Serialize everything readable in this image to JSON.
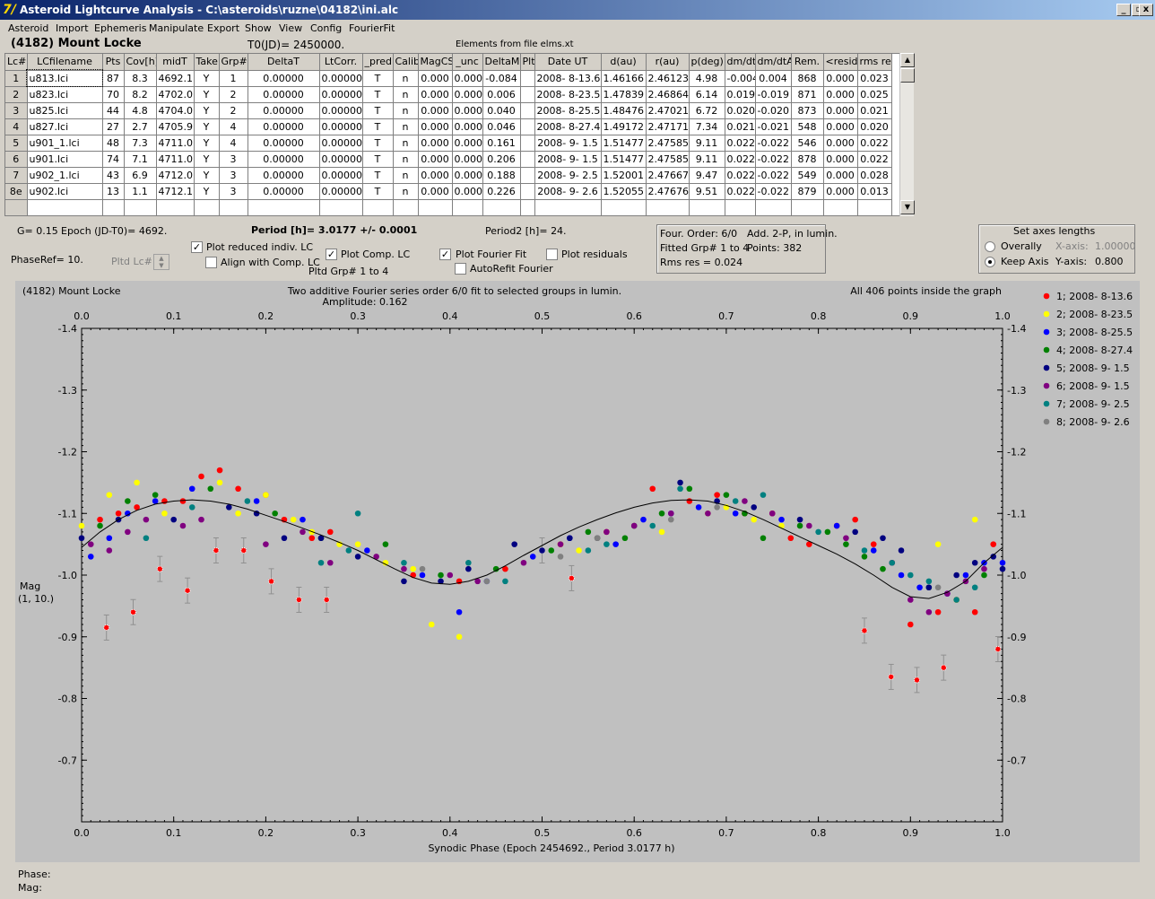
{
  "window": {
    "title": "Asteroid Lightcurve Analysis - C:\\asteroids\\ruzne\\04182\\ini.alc",
    "icon": "app-icon",
    "controls": [
      "_",
      "▫",
      "x"
    ]
  },
  "menu": [
    "Asteroid",
    "Import",
    "Ephemeris",
    "Manipulate",
    "Export",
    "Show",
    "View",
    "Config",
    "FourierFit"
  ],
  "header": {
    "asteroid": "(4182) Mount Locke",
    "t0": "T0(JD)= 2450000.",
    "elements": "Elements from file elms.xt"
  },
  "table": {
    "columns": [
      "Lc#",
      "LCfilename",
      "Pts",
      "Cov[h]",
      "midT",
      "Take",
      "Grp#",
      "DeltaT",
      "LtCorr.",
      "_pred.",
      "Calib.",
      "MagCS",
      "_unc",
      "DeltaM",
      "Plt",
      "Date UT",
      "d(au)",
      "r(au)",
      "p(deg)",
      "dm/dt",
      "dm/dtA",
      "Rem.",
      "<resid>",
      "rms res"
    ],
    "rows": [
      [
        "1",
        "u813.lci",
        "87",
        "8.3",
        "4692.1",
        "Y",
        "1",
        "0.00000",
        "0.00000",
        "T",
        "n",
        "0.000",
        "0.000",
        "-0.084",
        "",
        "2008- 8-13.6",
        "1.46166",
        "2.46123",
        "4.98",
        "-0.004",
        "0.004",
        "868",
        "0.000",
        "0.023"
      ],
      [
        "2",
        "u823.lci",
        "70",
        "8.2",
        "4702.0",
        "Y",
        "2",
        "0.00000",
        "0.00000",
        "T",
        "n",
        "0.000",
        "0.000",
        "0.006",
        "",
        "2008- 8-23.5",
        "1.47839",
        "2.46864",
        "6.14",
        "0.019",
        "-0.019",
        "871",
        "0.000",
        "0.025"
      ],
      [
        "3",
        "u825.lci",
        "44",
        "4.8",
        "4704.0",
        "Y",
        "2",
        "0.00000",
        "0.00000",
        "T",
        "n",
        "0.000",
        "0.000",
        "0.040",
        "",
        "2008- 8-25.5",
        "1.48476",
        "2.47021",
        "6.72",
        "0.020",
        "-0.020",
        "873",
        "0.000",
        "0.021"
      ],
      [
        "4",
        "u827.lci",
        "27",
        "2.7",
        "4705.9",
        "Y",
        "4",
        "0.00000",
        "0.00000",
        "T",
        "n",
        "0.000",
        "0.000",
        "0.046",
        "",
        "2008- 8-27.4",
        "1.49172",
        "2.47171",
        "7.34",
        "0.021",
        "-0.021",
        "548",
        "0.000",
        "0.020"
      ],
      [
        "5",
        "u901_1.lci",
        "48",
        "7.3",
        "4711.0",
        "Y",
        "4",
        "0.00000",
        "0.00000",
        "T",
        "n",
        "0.000",
        "0.000",
        "0.161",
        "",
        "2008- 9- 1.5",
        "1.51477",
        "2.47585",
        "9.11",
        "0.022",
        "-0.022",
        "546",
        "0.000",
        "0.022"
      ],
      [
        "6",
        "u901.lci",
        "74",
        "7.1",
        "4711.0",
        "Y",
        "3",
        "0.00000",
        "0.00000",
        "T",
        "n",
        "0.000",
        "0.000",
        "0.206",
        "",
        "2008- 9- 1.5",
        "1.51477",
        "2.47585",
        "9.11",
        "0.022",
        "-0.022",
        "878",
        "0.000",
        "0.022"
      ],
      [
        "7",
        "u902_1.lci",
        "43",
        "6.9",
        "4712.0",
        "Y",
        "3",
        "0.00000",
        "0.00000",
        "T",
        "n",
        "0.000",
        "0.000",
        "0.188",
        "",
        "2008- 9- 2.5",
        "1.52001",
        "2.47667",
        "9.47",
        "0.022",
        "-0.022",
        "549",
        "0.000",
        "0.028"
      ],
      [
        "8e",
        "u902.lci",
        "13",
        "1.1",
        "4712.1",
        "Y",
        "3",
        "0.00000",
        "0.00000",
        "T",
        "n",
        "0.000",
        "0.000",
        "0.226",
        "",
        "2008- 9- 2.6",
        "1.52055",
        "2.47676",
        "9.51",
        "0.022",
        "-0.022",
        "879",
        "0.000",
        "0.013"
      ]
    ]
  },
  "controls": {
    "g": "G= 0.15",
    "epoch": "Epoch (JD-T0)= 4692.",
    "phaseref": "PhaseRef= 10.",
    "pltd_lc": "Pltd Lc#:",
    "period": "Period [h]= 3.0177 +/- 0.0001",
    "period2": "Period2 [h]= 24.",
    "plot_reduced": "Plot reduced indiv. LC",
    "align_comp": "Align with Comp. LC",
    "plot_comp": "Plot Comp. LC",
    "pltd_grp": "Pltd Grp#  1   to   4",
    "plot_fourier": "Plot Fourier Fit",
    "autorefit": "AutoRefit Fourier",
    "plot_residuals": "Plot residuals",
    "four_order": "Four. Order:  6/0",
    "add_2p": "Add. 2-P, in lumin.",
    "fitted_grp": "Fitted Grp# 1 to 4",
    "points": "Points: 382",
    "rms_res": "Rms res      = 0.024",
    "axes_title": "Set axes lengths",
    "overally": "Overally",
    "keep_axis": "Keep Axis",
    "x_axis_label": "X-axis:",
    "x_axis_value": "1.00000",
    "y_axis_label": "Y-axis:",
    "y_axis_value": "0.800"
  },
  "status": {
    "phase": "Phase:",
    "mag": "Mag:"
  },
  "colors": {
    "red": "#ff0000",
    "yellow": "#ffff00",
    "blue": "#0000ff",
    "green": "#008000",
    "navy": "#000080",
    "purple": "#800080",
    "teal": "#008080",
    "gray": "#808080"
  },
  "chart_data": {
    "type": "scatter",
    "title_left": "(4182) Mount Locke",
    "title_center": "Two additive Fourier series order 6/0 fit to selected groups in lumin.",
    "amplitude": "Amplitude: 0.162",
    "title_right": "All 406 points inside the graph",
    "xlabel": "Synodic Phase (Epoch 2454692., Period 3.0177 h)",
    "ylabel": "Mag",
    "ylabel2": "(1, 10.)",
    "xlim": [
      0.0,
      1.0
    ],
    "ylim": [
      -1.4,
      -0.6
    ],
    "y_inverted": true,
    "xticks": [
      "0.0",
      "0.1",
      "0.2",
      "0.3",
      "0.4",
      "0.5",
      "0.6",
      "0.7",
      "0.8",
      "0.9",
      "1.0"
    ],
    "yticks": [
      "-1.4",
      "-1.3",
      "-1.2",
      "-1.1",
      "-1.0",
      "-0.9",
      "-0.8",
      "-0.7"
    ],
    "legend": [
      {
        "label": "1; 2008- 8-13.6",
        "color": "#ff0000"
      },
      {
        "label": "2; 2008- 8-23.5",
        "color": "#ffff00"
      },
      {
        "label": "3; 2008- 8-25.5",
        "color": "#0000ff"
      },
      {
        "label": "4; 2008- 8-27.4",
        "color": "#008000"
      },
      {
        "label": "5; 2008- 9- 1.5",
        "color": "#000080"
      },
      {
        "label": "6; 2008- 9- 1.5",
        "color": "#800080"
      },
      {
        "label": "7; 2008- 9- 2.5",
        "color": "#008080"
      },
      {
        "label": "8; 2008- 9- 2.6",
        "color": "#808080"
      }
    ],
    "fit_curve": {
      "x": [
        0.0,
        0.02,
        0.04,
        0.06,
        0.08,
        0.1,
        0.12,
        0.14,
        0.16,
        0.18,
        0.2,
        0.22,
        0.24,
        0.26,
        0.28,
        0.3,
        0.32,
        0.34,
        0.36,
        0.38,
        0.4,
        0.42,
        0.44,
        0.46,
        0.48,
        0.5,
        0.52,
        0.54,
        0.56,
        0.58,
        0.6,
        0.62,
        0.64,
        0.66,
        0.68,
        0.7,
        0.72,
        0.74,
        0.76,
        0.78,
        0.8,
        0.82,
        0.84,
        0.86,
        0.88,
        0.9,
        0.92,
        0.94,
        0.96,
        0.98,
        1.0
      ],
      "y": [
        -1.045,
        -1.07,
        -1.09,
        -1.105,
        -1.115,
        -1.12,
        -1.122,
        -1.12,
        -1.115,
        -1.107,
        -1.097,
        -1.087,
        -1.076,
        -1.065,
        -1.053,
        -1.04,
        -1.025,
        -1.01,
        -0.996,
        -0.987,
        -0.985,
        -0.99,
        -1.0,
        -1.015,
        -1.032,
        -1.048,
        -1.064,
        -1.078,
        -1.09,
        -1.101,
        -1.11,
        -1.117,
        -1.121,
        -1.122,
        -1.12,
        -1.113,
        -1.103,
        -1.09,
        -1.076,
        -1.062,
        -1.048,
        -1.034,
        -1.018,
        -1.0,
        -0.98,
        -0.965,
        -0.962,
        -0.972,
        -0.99,
        -1.02,
        -1.045
      ]
    },
    "series": [
      {
        "name": "1; 2008- 8-13.6",
        "color": "#ff0000",
        "x": [
          0.02,
          0.04,
          0.06,
          0.09,
          0.11,
          0.13,
          0.15,
          0.17,
          0.2,
          0.22,
          0.25,
          0.27,
          0.36,
          0.41,
          0.46,
          0.52,
          0.57,
          0.62,
          0.66,
          0.69,
          0.72,
          0.75,
          0.77,
          0.79,
          0.82,
          0.84,
          0.86,
          0.88,
          0.9,
          0.93,
          0.95,
          0.97,
          0.99
        ],
        "y": [
          -1.09,
          -1.1,
          -1.11,
          -1.12,
          -1.12,
          -1.16,
          -1.17,
          -1.14,
          -1.13,
          -1.09,
          -1.06,
          -1.07,
          -1.0,
          -0.99,
          -1.01,
          -1.05,
          -1.07,
          -1.14,
          -1.12,
          -1.13,
          -1.1,
          -1.1,
          -1.06,
          -1.05,
          -1.08,
          -1.09,
          -1.05,
          -1.02,
          -0.92,
          -0.94,
          -0.96,
          -0.94,
          -1.05
        ]
      },
      {
        "name": "2; 2008- 8-23.5",
        "color": "#ffff00",
        "x": [
          0.0,
          0.03,
          0.06,
          0.09,
          0.15,
          0.17,
          0.2,
          0.23,
          0.25,
          0.28,
          0.3,
          0.33,
          0.36,
          0.38,
          0.41,
          0.52,
          0.54,
          0.56,
          0.6,
          0.63,
          0.68,
          0.7,
          0.73,
          0.76,
          0.93,
          0.95,
          0.97
        ],
        "y": [
          -1.08,
          -1.13,
          -1.15,
          -1.1,
          -1.15,
          -1.1,
          -1.13,
          -1.09,
          -1.07,
          -1.05,
          -1.05,
          -1.02,
          -1.01,
          -0.92,
          -0.9,
          -1.05,
          -1.04,
          -1.06,
          -1.08,
          -1.07,
          -1.1,
          -1.11,
          -1.09,
          -1.08,
          -1.05,
          -0.96,
          -1.09
        ]
      },
      {
        "name": "3; 2008- 8-25.5",
        "color": "#0000ff",
        "x": [
          0.01,
          0.03,
          0.05,
          0.08,
          0.12,
          0.19,
          0.24,
          0.31,
          0.37,
          0.41,
          0.44,
          0.49,
          0.53,
          0.58,
          0.61,
          0.64,
          0.67,
          0.71,
          0.76,
          0.82,
          0.86,
          0.89,
          0.91,
          0.94,
          0.96,
          0.98,
          1.0
        ],
        "y": [
          -1.03,
          -1.06,
          -1.1,
          -1.12,
          -1.14,
          -1.12,
          -1.09,
          -1.04,
          -1.0,
          -0.94,
          -0.99,
          -1.03,
          -1.06,
          -1.05,
          -1.09,
          -1.1,
          -1.11,
          -1.1,
          -1.09,
          -1.08,
          -1.04,
          -1.0,
          -0.98,
          -0.97,
          -1.0,
          -1.02,
          -1.02
        ]
      },
      {
        "name": "4; 2008- 8-27.4",
        "color": "#008000",
        "x": [
          0.02,
          0.05,
          0.08,
          0.14,
          0.21,
          0.26,
          0.33,
          0.39,
          0.45,
          0.51,
          0.55,
          0.59,
          0.63,
          0.66,
          0.7,
          0.72,
          0.74,
          0.78,
          0.81,
          0.83,
          0.85,
          0.87,
          0.92,
          0.98
        ],
        "y": [
          -1.08,
          -1.12,
          -1.13,
          -1.14,
          -1.1,
          -1.06,
          -1.05,
          -1.0,
          -1.01,
          -1.04,
          -1.07,
          -1.06,
          -1.1,
          -1.14,
          -1.13,
          -1.1,
          -1.06,
          -1.08,
          -1.07,
          -1.05,
          -1.03,
          -1.01,
          -0.98,
          -1.0
        ]
      },
      {
        "name": "5; 2008- 9- 1.5",
        "color": "#000080",
        "x": [
          0.0,
          0.04,
          0.1,
          0.16,
          0.19,
          0.22,
          0.26,
          0.3,
          0.35,
          0.39,
          0.42,
          0.47,
          0.5,
          0.53,
          0.56,
          0.6,
          0.65,
          0.69,
          0.73,
          0.78,
          0.84,
          0.87,
          0.89,
          0.92,
          0.95,
          0.97,
          0.99,
          1.0
        ],
        "y": [
          -1.06,
          -1.09,
          -1.09,
          -1.11,
          -1.1,
          -1.06,
          -1.06,
          -1.03,
          -0.99,
          -0.99,
          -1.01,
          -1.05,
          -1.04,
          -1.06,
          -1.06,
          -1.08,
          -1.15,
          -1.12,
          -1.11,
          -1.09,
          -1.07,
          -1.06,
          -1.04,
          -0.98,
          -1.0,
          -1.02,
          -1.03,
          -1.01
        ]
      },
      {
        "name": "6; 2008- 9- 1.5",
        "color": "#800080",
        "x": [
          0.01,
          0.03,
          0.05,
          0.07,
          0.11,
          0.13,
          0.2,
          0.24,
          0.27,
          0.32,
          0.35,
          0.4,
          0.43,
          0.48,
          0.52,
          0.57,
          0.6,
          0.64,
          0.68,
          0.72,
          0.75,
          0.79,
          0.83,
          0.88,
          0.9,
          0.92,
          0.94,
          0.96,
          0.98
        ],
        "y": [
          -1.05,
          -1.04,
          -1.07,
          -1.09,
          -1.08,
          -1.09,
          -1.05,
          -1.07,
          -1.02,
          -1.03,
          -1.01,
          -1.0,
          -0.99,
          -1.02,
          -1.05,
          -1.07,
          -1.08,
          -1.1,
          -1.1,
          -1.12,
          -1.1,
          -1.08,
          -1.06,
          -1.02,
          -0.96,
          -0.94,
          -0.97,
          -0.99,
          -1.01
        ]
      },
      {
        "name": "7; 2008- 9- 2.5",
        "color": "#008080",
        "x": [
          0.07,
          0.12,
          0.18,
          0.26,
          0.29,
          0.3,
          0.35,
          0.42,
          0.46,
          0.55,
          0.57,
          0.62,
          0.65,
          0.71,
          0.74,
          0.8,
          0.85,
          0.88,
          0.9,
          0.92,
          0.95,
          0.97
        ],
        "y": [
          -1.06,
          -1.11,
          -1.12,
          -1.02,
          -1.04,
          -1.1,
          -1.02,
          -1.02,
          -0.99,
          -1.04,
          -1.05,
          -1.08,
          -1.14,
          -1.12,
          -1.13,
          -1.07,
          -1.04,
          -1.02,
          -1.0,
          -0.99,
          -0.96,
          -0.98
        ]
      },
      {
        "name": "8; 2008- 9- 2.6",
        "color": "#808080",
        "x": [
          0.37,
          0.44,
          0.52,
          0.56,
          0.64,
          0.69,
          0.93
        ],
        "y": [
          -1.01,
          -0.99,
          -1.03,
          -1.06,
          -1.09,
          -1.11,
          -0.98
        ]
      }
    ],
    "series1_errorbars": {
      "color": "#ff0000",
      "x": [
        0.027,
        0.056,
        0.085,
        0.115,
        0.146,
        0.176,
        0.206,
        0.236,
        0.266,
        0.5,
        0.532,
        0.85,
        0.879,
        0.907,
        0.936,
        0.995
      ],
      "y": [
        -0.915,
        -0.94,
        -1.01,
        -0.975,
        -1.04,
        -1.04,
        -0.99,
        -0.96,
        -0.96,
        -1.04,
        -0.995,
        -0.91,
        -0.835,
        -0.83,
        -0.85,
        -0.88
      ]
    }
  }
}
